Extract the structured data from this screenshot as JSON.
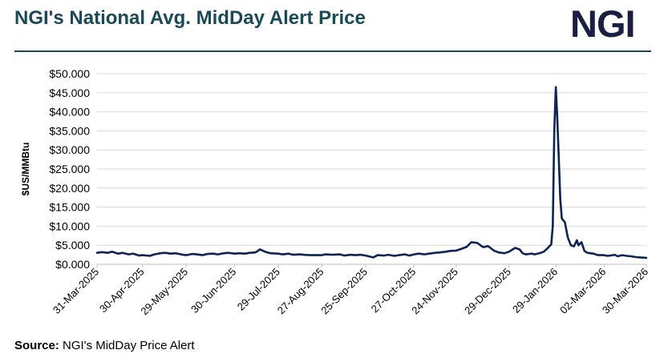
{
  "header": {
    "title": "NGI's National Avg. MidDay Alert Price",
    "logo_text": "NGI"
  },
  "footer": {
    "source_label": "Source:",
    "source_text": "NGI's MidDay Price Alert"
  },
  "colors": {
    "title": "#1a4a57",
    "logo": "#1b1f44",
    "line": "#0f2454",
    "grid": "#d9d9d9"
  },
  "chart_data": {
    "type": "line",
    "title": "NGI's National Avg. MidDay Alert Price",
    "ylabel": "$US/MMBtu",
    "xlabel": "",
    "ylim": [
      0,
      50
    ],
    "grid": true,
    "legend": "none",
    "y_ticks": [
      "$0.000",
      "$5.000",
      "$10.000",
      "$15.000",
      "$20.000",
      "$25.000",
      "$30.000",
      "$35.000",
      "$40.000",
      "$45.000",
      "$50.000"
    ],
    "x_ticks": [
      "31-Mar-2025",
      "30-Apr-2025",
      "29-May-2025",
      "30-Jun-2025",
      "29-Jul-2025",
      "27-Aug-2025",
      "25-Sep-2025",
      "27-Oct-2025",
      "24-Nov-2025",
      "29-Dec-2025",
      "29-Jan-2026",
      "02-Mar-2026",
      "30-Mar-2026"
    ],
    "xlim": [
      "2025-03-31",
      "2026-03-30"
    ],
    "series": [
      {
        "points": [
          [
            "2025-03-31",
            3.0
          ],
          [
            "2025-04-03",
            3.2
          ],
          [
            "2025-04-07",
            3.0
          ],
          [
            "2025-04-10",
            3.3
          ],
          [
            "2025-04-14",
            2.8
          ],
          [
            "2025-04-17",
            3.0
          ],
          [
            "2025-04-21",
            2.6
          ],
          [
            "2025-04-24",
            2.8
          ],
          [
            "2025-04-28",
            2.3
          ],
          [
            "2025-04-30",
            2.4
          ],
          [
            "2025-05-05",
            2.2
          ],
          [
            "2025-05-08",
            2.6
          ],
          [
            "2025-05-12",
            2.9
          ],
          [
            "2025-05-15",
            3.0
          ],
          [
            "2025-05-19",
            2.8
          ],
          [
            "2025-05-22",
            2.9
          ],
          [
            "2025-05-27",
            2.5
          ],
          [
            "2025-05-29",
            2.4
          ],
          [
            "2025-06-02",
            2.7
          ],
          [
            "2025-06-05",
            2.6
          ],
          [
            "2025-06-09",
            2.4
          ],
          [
            "2025-06-12",
            2.7
          ],
          [
            "2025-06-16",
            2.8
          ],
          [
            "2025-06-19",
            2.6
          ],
          [
            "2025-06-23",
            2.9
          ],
          [
            "2025-06-26",
            3.0
          ],
          [
            "2025-06-30",
            2.8
          ],
          [
            "2025-07-03",
            2.9
          ],
          [
            "2025-07-07",
            2.8
          ],
          [
            "2025-07-10",
            3.0
          ],
          [
            "2025-07-14",
            3.1
          ],
          [
            "2025-07-17",
            3.9
          ],
          [
            "2025-07-21",
            3.2
          ],
          [
            "2025-07-24",
            2.9
          ],
          [
            "2025-07-29",
            2.8
          ],
          [
            "2025-08-01",
            2.6
          ],
          [
            "2025-08-05",
            2.8
          ],
          [
            "2025-08-08",
            2.5
          ],
          [
            "2025-08-12",
            2.6
          ],
          [
            "2025-08-15",
            2.5
          ],
          [
            "2025-08-19",
            2.4
          ],
          [
            "2025-08-22",
            2.4
          ],
          [
            "2025-08-27",
            2.4
          ],
          [
            "2025-08-29",
            2.6
          ],
          [
            "2025-09-03",
            2.5
          ],
          [
            "2025-09-08",
            2.6
          ],
          [
            "2025-09-11",
            2.3
          ],
          [
            "2025-09-15",
            2.5
          ],
          [
            "2025-09-18",
            2.4
          ],
          [
            "2025-09-22",
            2.5
          ],
          [
            "2025-09-25",
            2.3
          ],
          [
            "2025-09-30",
            1.8
          ],
          [
            "2025-10-03",
            2.4
          ],
          [
            "2025-10-07",
            2.3
          ],
          [
            "2025-10-10",
            2.5
          ],
          [
            "2025-10-14",
            2.2
          ],
          [
            "2025-10-17",
            2.4
          ],
          [
            "2025-10-21",
            2.6
          ],
          [
            "2025-10-24",
            2.3
          ],
          [
            "2025-10-27",
            2.6
          ],
          [
            "2025-10-30",
            2.8
          ],
          [
            "2025-11-03",
            2.6
          ],
          [
            "2025-11-06",
            2.8
          ],
          [
            "2025-11-10",
            3.0
          ],
          [
            "2025-11-13",
            3.1
          ],
          [
            "2025-11-17",
            3.3
          ],
          [
            "2025-11-20",
            3.5
          ],
          [
            "2025-11-24",
            3.6
          ],
          [
            "2025-11-27",
            4.0
          ],
          [
            "2025-12-01",
            4.6
          ],
          [
            "2025-12-04",
            5.8
          ],
          [
            "2025-12-08",
            5.6
          ],
          [
            "2025-12-10",
            5.0
          ],
          [
            "2025-12-12",
            4.5
          ],
          [
            "2025-12-15",
            4.8
          ],
          [
            "2025-12-17",
            4.2
          ],
          [
            "2025-12-19",
            3.6
          ],
          [
            "2025-12-22",
            3.1
          ],
          [
            "2025-12-24",
            3.0
          ],
          [
            "2025-12-26",
            2.9
          ],
          [
            "2025-12-29",
            3.3
          ],
          [
            "2026-01-02",
            4.3
          ],
          [
            "2026-01-05",
            3.9
          ],
          [
            "2026-01-07",
            2.9
          ],
          [
            "2026-01-09",
            2.6
          ],
          [
            "2026-01-13",
            2.8
          ],
          [
            "2026-01-15",
            2.6
          ],
          [
            "2026-01-19",
            3.0
          ],
          [
            "2026-01-21",
            3.3
          ],
          [
            "2026-01-23",
            4.0
          ],
          [
            "2026-01-26",
            5.2
          ],
          [
            "2026-01-27",
            10.0
          ],
          [
            "2026-01-28",
            35.0
          ],
          [
            "2026-01-29",
            46.5
          ],
          [
            "2026-01-30",
            38.0
          ],
          [
            "2026-02-01",
            17.0
          ],
          [
            "2026-02-02",
            12.0
          ],
          [
            "2026-02-04",
            11.0
          ],
          [
            "2026-02-06",
            7.0
          ],
          [
            "2026-02-08",
            5.0
          ],
          [
            "2026-02-10",
            4.7
          ],
          [
            "2026-02-12",
            6.3
          ],
          [
            "2026-02-13",
            5.0
          ],
          [
            "2026-02-15",
            5.8
          ],
          [
            "2026-02-17",
            3.5
          ],
          [
            "2026-02-19",
            3.0
          ],
          [
            "2026-02-23",
            2.8
          ],
          [
            "2026-02-26",
            2.4
          ],
          [
            "2026-03-02",
            2.4
          ],
          [
            "2026-03-04",
            2.2
          ],
          [
            "2026-03-06",
            2.3
          ],
          [
            "2026-03-09",
            2.5
          ],
          [
            "2026-03-11",
            2.1
          ],
          [
            "2026-03-14",
            2.4
          ],
          [
            "2026-03-17",
            2.2
          ],
          [
            "2026-03-20",
            2.1
          ],
          [
            "2026-03-23",
            1.9
          ],
          [
            "2026-03-26",
            1.8
          ],
          [
            "2026-03-30",
            1.7
          ]
        ]
      }
    ]
  }
}
